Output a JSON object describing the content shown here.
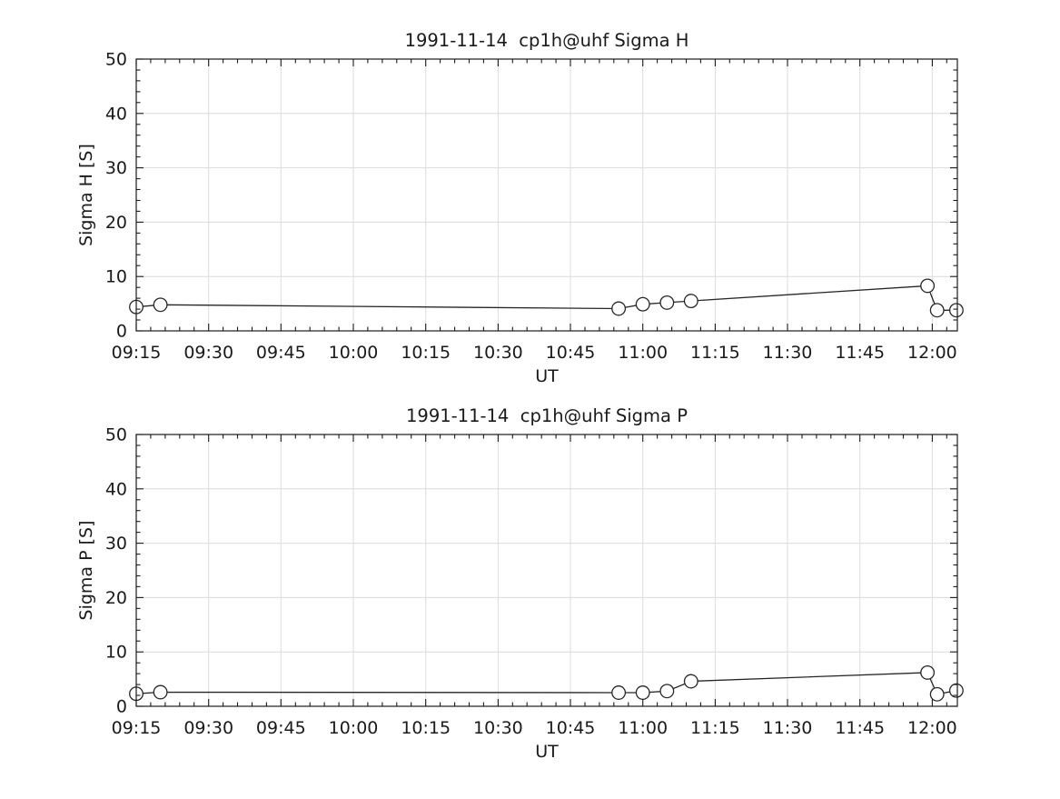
{
  "figure": {
    "background": "#ffffff"
  },
  "chart_data": [
    {
      "type": "line",
      "title": "1991-11-14  cp1h@uhf Sigma H",
      "xlabel": "UT",
      "ylabel": "Sigma H [S]",
      "ylim": [
        0,
        50
      ],
      "xlim": [
        "09:15",
        "12:05"
      ],
      "x_ticks": [
        "09:15",
        "09:30",
        "09:45",
        "10:00",
        "10:15",
        "10:30",
        "10:45",
        "11:00",
        "11:15",
        "11:30",
        "11:45",
        "12:00"
      ],
      "y_ticks": [
        0,
        10,
        20,
        30,
        40,
        50
      ],
      "x_minor_step_minutes": 3,
      "y_minor_step": 2,
      "grid": true,
      "legend": "none",
      "marker": "open-circle",
      "colors": {
        "line": "#262626",
        "grid": "#dcdcdc",
        "axis": "#1a1a1a",
        "marker_fill": "#ffffff"
      },
      "points": [
        [
          "09:15",
          4.4
        ],
        [
          "09:20",
          4.8
        ],
        [
          "10:55",
          4.1
        ],
        [
          "11:00",
          4.9
        ],
        [
          "11:05",
          5.2
        ],
        [
          "11:10",
          5.5
        ],
        [
          "11:59",
          8.3
        ],
        [
          "12:01",
          3.8
        ],
        [
          "12:05",
          3.8
        ]
      ]
    },
    {
      "type": "line",
      "title": "1991-11-14  cp1h@uhf Sigma P",
      "xlabel": "UT",
      "ylabel": "Sigma P [S]",
      "ylim": [
        0,
        50
      ],
      "xlim": [
        "09:15",
        "12:05"
      ],
      "x_ticks": [
        "09:15",
        "09:30",
        "09:45",
        "10:00",
        "10:15",
        "10:30",
        "10:45",
        "11:00",
        "11:15",
        "11:30",
        "11:45",
        "12:00"
      ],
      "y_ticks": [
        0,
        10,
        20,
        30,
        40,
        50
      ],
      "x_minor_step_minutes": 3,
      "y_minor_step": 2,
      "grid": true,
      "legend": "none",
      "marker": "open-circle",
      "colors": {
        "line": "#262626",
        "grid": "#dcdcdc",
        "axis": "#1a1a1a",
        "marker_fill": "#ffffff"
      },
      "points": [
        [
          "09:15",
          2.3
        ],
        [
          "09:20",
          2.6
        ],
        [
          "10:55",
          2.5
        ],
        [
          "11:00",
          2.5
        ],
        [
          "11:05",
          2.8
        ],
        [
          "11:10",
          4.6
        ],
        [
          "11:59",
          6.2
        ],
        [
          "12:01",
          2.2
        ],
        [
          "12:05",
          2.9
        ]
      ]
    }
  ]
}
